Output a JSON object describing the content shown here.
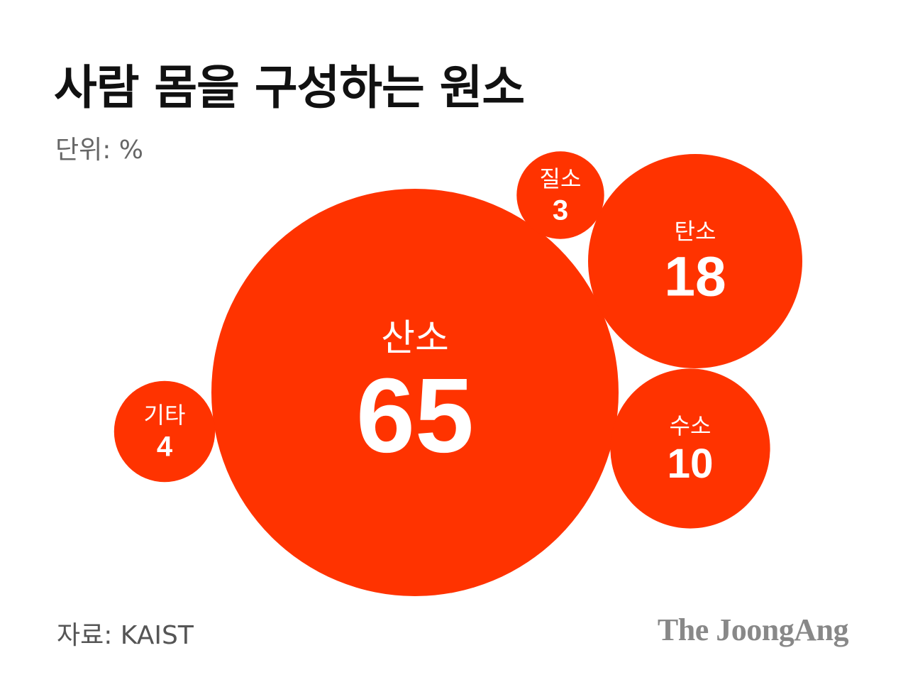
{
  "title": "사람 몸을 구성하는 원소",
  "unit_label": "단위: %",
  "source": "자료: KAIST",
  "brand": "The JoongAng",
  "colors": {
    "bubble": "#ff3300",
    "text_on_bubble": "#ffffff"
  },
  "chart_data": {
    "type": "bubble",
    "unit": "%",
    "items": [
      {
        "label": "산소",
        "value": 65
      },
      {
        "label": "탄소",
        "value": 18
      },
      {
        "label": "수소",
        "value": 10
      },
      {
        "label": "기타",
        "value": 4
      },
      {
        "label": "질소",
        "value": 3
      }
    ]
  }
}
